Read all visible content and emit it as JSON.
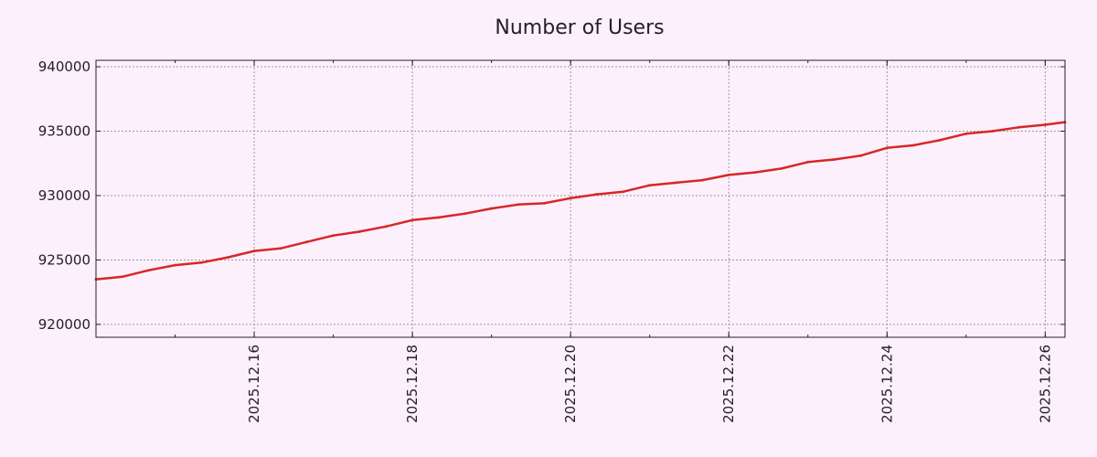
{
  "chart_data": {
    "type": "line",
    "title": "Number of Users",
    "xlabel": "",
    "ylabel": "",
    "x_axis_type": "date",
    "x": [
      "2025.12.14 00:00",
      "2025.12.14 08:00",
      "2025.12.14 16:00",
      "2025.12.15 00:00",
      "2025.12.15 08:00",
      "2025.12.15 16:00",
      "2025.12.16 00:00",
      "2025.12.16 08:00",
      "2025.12.16 16:00",
      "2025.12.17 00:00",
      "2025.12.17 08:00",
      "2025.12.17 16:00",
      "2025.12.18 00:00",
      "2025.12.18 08:00",
      "2025.12.18 16:00",
      "2025.12.19 00:00",
      "2025.12.19 08:00",
      "2025.12.19 16:00",
      "2025.12.20 00:00",
      "2025.12.20 08:00",
      "2025.12.20 16:00",
      "2025.12.21 00:00",
      "2025.12.21 08:00",
      "2025.12.21 16:00",
      "2025.12.22 00:00",
      "2025.12.22 08:00",
      "2025.12.22 16:00",
      "2025.12.23 00:00",
      "2025.12.23 08:00",
      "2025.12.23 16:00",
      "2025.12.24 00:00",
      "2025.12.24 08:00",
      "2025.12.24 16:00",
      "2025.12.25 00:00",
      "2025.12.25 08:00",
      "2025.12.25 16:00",
      "2025.12.26 00:00",
      "2025.12.26 06:00"
    ],
    "series": [
      {
        "name": "",
        "color": "#d62728",
        "values": [
          923500,
          923700,
          924200,
          924600,
          924800,
          925200,
          925700,
          925900,
          926400,
          926900,
          927200,
          927600,
          928100,
          928300,
          928600,
          929000,
          929300,
          929400,
          929800,
          930100,
          930300,
          930800,
          931000,
          931200,
          931600,
          931800,
          932100,
          932600,
          932800,
          933100,
          933700,
          933900,
          934300,
          934800,
          935000,
          935300,
          935500,
          935700
        ]
      }
    ],
    "xticks": [
      "2025.12.16",
      "2025.12.18",
      "2025.12.20",
      "2025.12.22",
      "2025.12.24",
      "2025.12.26"
    ],
    "yticks": [
      "920000",
      "925000",
      "930000",
      "935000",
      "940000"
    ],
    "xlim": [
      "2025.12.14 00:00",
      "2025.12.26 06:00"
    ],
    "ylim": [
      919000,
      940500
    ],
    "grid": true,
    "legend": "none"
  }
}
